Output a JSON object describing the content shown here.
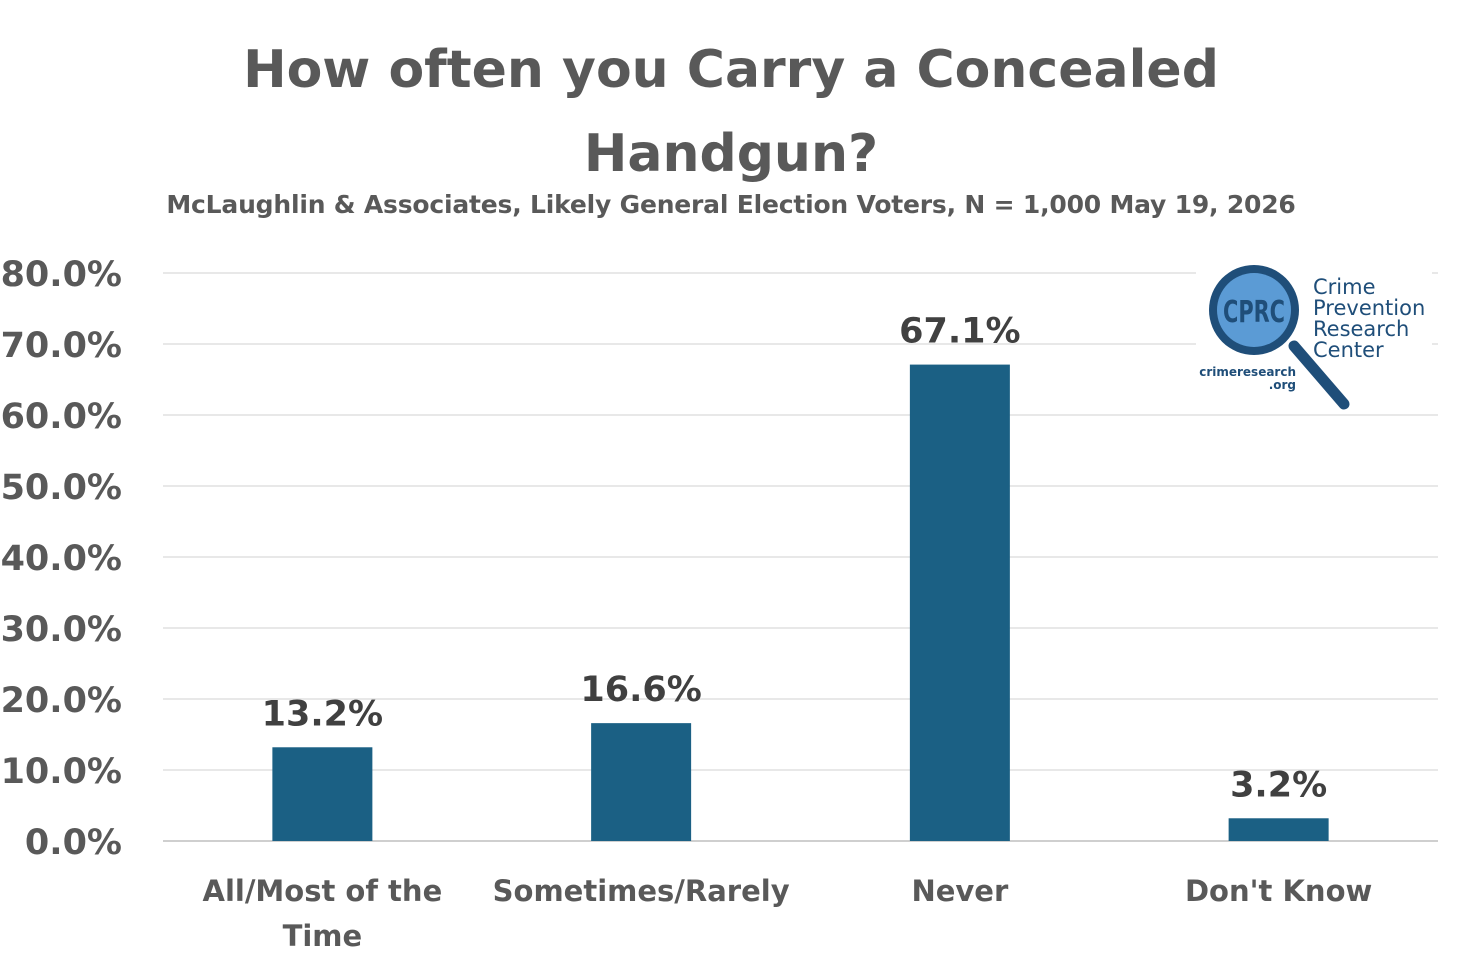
{
  "chart_data": {
    "type": "bar",
    "title": "How often you Carry a Concealed Handgun?",
    "title_lines": [
      "How often you Carry a Concealed",
      "Handgun?"
    ],
    "subtitle": "McLaughlin & Associates, Likely General Election Voters, N = 1,000 May 19, 2026",
    "categories": [
      "All/Most of the Time",
      "Sometimes/Rarely",
      "Never",
      "Don't Know"
    ],
    "category_lines": [
      [
        "All/Most of the",
        "Time"
      ],
      [
        "Sometimes/Rarely"
      ],
      [
        "Never"
      ],
      [
        "Don't Know"
      ]
    ],
    "values": [
      13.2,
      16.6,
      67.1,
      3.2
    ],
    "data_labels": [
      "13.2%",
      "16.6%",
      "67.1%",
      "3.2%"
    ],
    "ylim": [
      0,
      80
    ],
    "yticks": [
      0,
      10,
      20,
      30,
      40,
      50,
      60,
      70,
      80
    ],
    "ytick_labels": [
      "0.0%",
      "10.0%",
      "20.0%",
      "30.0%",
      "40.0%",
      "50.0%",
      "60.0%",
      "70.0%",
      "80.0%"
    ],
    "xlabel": "",
    "ylabel": "",
    "grid": true,
    "legend": "none",
    "bar_color": "#1b6084",
    "grid_color": "#d9d9d9",
    "text_color": "#595959",
    "data_label_color": "#404040"
  },
  "logo": {
    "badge": "CPRC",
    "name_lines": [
      "Crime",
      "Prevention",
      "Research",
      "Center"
    ],
    "url_lines": [
      "crimeresearch",
      ".org"
    ],
    "color": "#1f4e79",
    "lens_color": "#5b9bd5"
  }
}
